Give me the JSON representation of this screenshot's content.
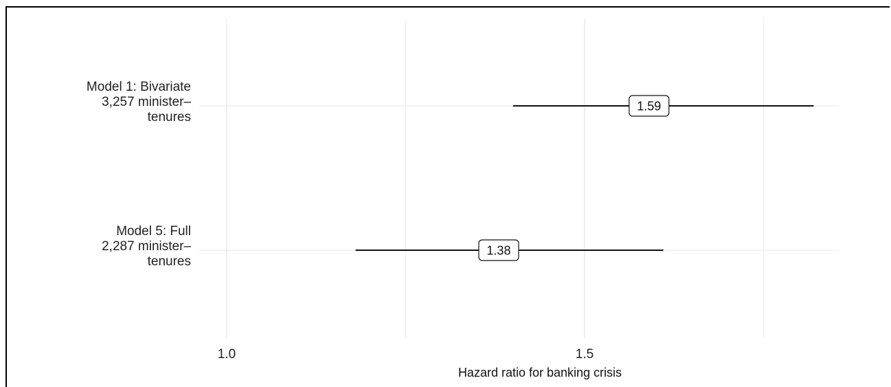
{
  "chart_data": {
    "type": "forest",
    "title": "",
    "xlabel": "Hazard ratio for banking crisis",
    "xlim": [
      0.82,
      1.86
    ],
    "x_ticks": [
      1.0,
      1.5
    ],
    "x_tick_labels": [
      "1.0",
      "1.5"
    ],
    "minor_grid_x": [
      1.25,
      1.75
    ],
    "grid": true,
    "rows": [
      {
        "label_lines": [
          "Model 1: Bivariate",
          "3,257 minister–",
          "tenures"
        ],
        "estimate": 1.59,
        "estimate_label": "1.59",
        "ci_low": 1.4,
        "ci_high": 1.82
      },
      {
        "label_lines": [
          "Model 5: Full",
          "2,287 minister–",
          "tenures"
        ],
        "estimate": 1.38,
        "estimate_label": "1.38",
        "ci_low": 1.18,
        "ci_high": 1.61
      }
    ]
  }
}
